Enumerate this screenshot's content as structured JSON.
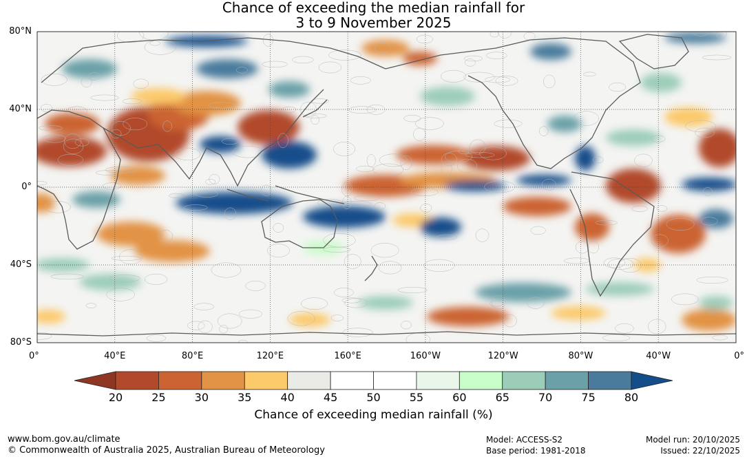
{
  "title": {
    "line1": "Chance of exceeding the median rainfall for",
    "line2": "3 to 9 November 2025"
  },
  "latitudes": [
    "80°N",
    "40°N",
    "0°",
    "40°S",
    "80°S"
  ],
  "longitudes": [
    "0°",
    "40°E",
    "80°E",
    "120°E",
    "160°E",
    "160°W",
    "120°W",
    "80°W",
    "40°W",
    "0°"
  ],
  "colorbar": {
    "ticks": [
      "20",
      "25",
      "30",
      "35",
      "40",
      "45",
      "50",
      "55",
      "60",
      "65",
      "70",
      "75",
      "80"
    ],
    "colors": [
      "#8e3621",
      "#b1492a",
      "#cb6332",
      "#e29345",
      "#fcc96b",
      "#eaeae6",
      "#ffffff",
      "#ffffff",
      "#e9f6e9",
      "#c8fcc8",
      "#9ccdb9",
      "#6aa0a8",
      "#4a7a9c",
      "#134d8a"
    ],
    "label": "Chance of exceeding median rainfall (%)"
  },
  "footer": {
    "url": "www.bom.gov.au/climate",
    "copyright": "© Commonwealth of Australia 2025, Australian Bureau of Meteorology",
    "model": "Model: ACCESS-S2",
    "base_period": "Base period: 1981-2018",
    "model_run": "Model run: 20/10/2025",
    "issued": "Issued: 22/10/2025"
  }
}
